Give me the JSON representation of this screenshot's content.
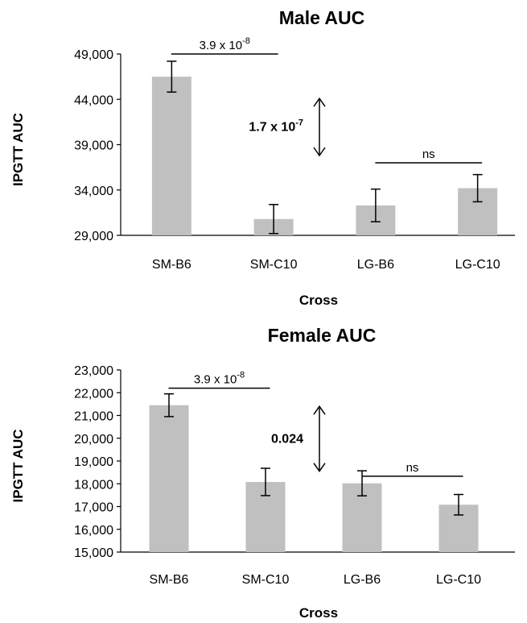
{
  "chart_data": [
    {
      "type": "bar",
      "title": "Male AUC",
      "xlabel": "Cross",
      "ylabel": "IPGTT AUC",
      "ylim": [
        29000,
        49000
      ],
      "yticks": [
        29000,
        34000,
        39000,
        44000,
        49000
      ],
      "ytick_labels": [
        "29,000",
        "34,000",
        "39,000",
        "44,000",
        "49,000"
      ],
      "categories": [
        "SM-B6",
        "SM-C10",
        "LG-B6",
        "LG-C10"
      ],
      "values": [
        46500,
        30800,
        32300,
        34200
      ],
      "errors": [
        1700,
        1600,
        1800,
        1500
      ],
      "bar_color": "#c0c0c0",
      "grid": false,
      "annotations": [
        {
          "type": "bracket",
          "from": "SM-B6",
          "to": "SM-C10",
          "y": 49000,
          "text": "3.9 x 10",
          "exp": "-8",
          "bold": false
        },
        {
          "type": "double-arrow",
          "y_top": 44100,
          "y_bottom": 37800,
          "text": "1.7 x 10",
          "exp": "-7",
          "bold": true
        },
        {
          "type": "bracket",
          "from": "LG-B6",
          "to": "LG-C10",
          "y": 37000,
          "text": "ns",
          "exp": "",
          "bold": false
        }
      ]
    },
    {
      "type": "bar",
      "title": "Female AUC",
      "xlabel": "Cross",
      "ylabel": "IPGTT AUC",
      "ylim": [
        15000,
        23000
      ],
      "yticks": [
        15000,
        16000,
        17000,
        18000,
        19000,
        20000,
        21000,
        22000,
        23000
      ],
      "ytick_labels": [
        "15,000",
        "16,000",
        "17,000",
        "18,000",
        "19,000",
        "20,000",
        "21,000",
        "22,000",
        "23,000"
      ],
      "categories": [
        "SM-B6",
        "SM-C10",
        "LG-B6",
        "LG-C10"
      ],
      "values": [
        21450,
        18080,
        18020,
        17080
      ],
      "errors": [
        500,
        600,
        550,
        450
      ],
      "bar_color": "#c0c0c0",
      "grid": false,
      "annotations": [
        {
          "type": "bracket",
          "from": "SM-B6",
          "to": "SM-C10",
          "y": 22200,
          "text": "3.9 x 10",
          "exp": "-8",
          "bold": false
        },
        {
          "type": "double-arrow",
          "y_top": 21400,
          "y_bottom": 18550,
          "text": "0.024",
          "exp": "",
          "bold": true
        },
        {
          "type": "bracket",
          "from": "LG-B6",
          "to": "LG-C10",
          "y": 18330,
          "text": "ns",
          "exp": "",
          "bold": false
        }
      ]
    }
  ]
}
